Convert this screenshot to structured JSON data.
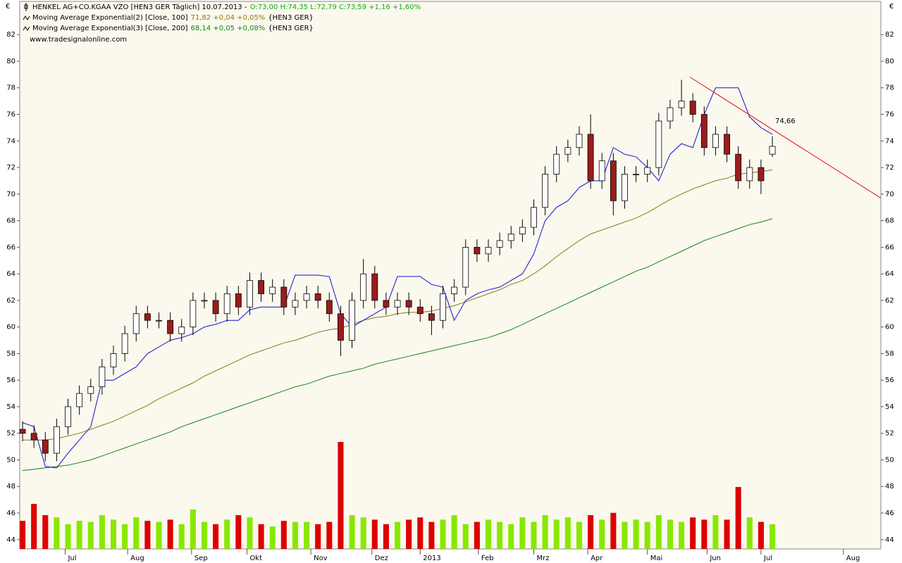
{
  "chart_data": {
    "type": "candlestick",
    "title": "HENKEL AG+CO.KGAA VZO [HEN3 GER  Täglich] 10.07.2013 -",
    "quote": "O:73,00 H:74,35 L:72,79 C:73,59 +1,16 +1,60%",
    "quote_color": "#11aa11",
    "credit": "www.tradesignalonline.com",
    "currency": "€",
    "background": "#fbf8ee",
    "x": [
      1,
      5,
      9,
      13,
      17,
      21,
      25,
      29,
      33,
      37,
      41,
      45,
      49,
      53,
      57,
      61,
      65,
      69,
      73,
      77,
      81,
      85,
      89,
      93,
      97,
      101,
      105,
      109,
      113,
      117,
      121,
      125,
      129,
      133,
      137,
      141,
      145,
      149,
      153,
      157,
      161,
      165,
      169,
      173,
      177,
      181,
      185,
      189,
      193,
      197,
      201,
      205,
      209,
      213,
      217,
      221,
      225,
      229,
      233,
      237,
      241,
      245,
      249,
      253,
      257,
      261,
      265
    ],
    "open": [
      52.3,
      52,
      51.5,
      50.5,
      52.5,
      54,
      55,
      55.5,
      57,
      58,
      59.5,
      61,
      60.5,
      60.5,
      59.5,
      60,
      62,
      62,
      61,
      62.5,
      61.5,
      63.5,
      62.5,
      63,
      61.5,
      62,
      62.5,
      62,
      61,
      59,
      62,
      64,
      62,
      61.5,
      62,
      61.5,
      61,
      60.5,
      62.5,
      63,
      66,
      65.5,
      66,
      66.5,
      67,
      67.5,
      69,
      71.5,
      73,
      73.5,
      74.5,
      71,
      72.5,
      69.5,
      71.5,
      71.5,
      72,
      75.5,
      76.5,
      77,
      76,
      73.5,
      74.5,
      73,
      71,
      72,
      73
    ],
    "high": [
      52.9,
      52.6,
      52.1,
      53.1,
      54.6,
      55.6,
      56.1,
      57.6,
      58.6,
      60.1,
      61.6,
      61.6,
      61.1,
      61.1,
      60.6,
      62.6,
      62.6,
      62.6,
      63.1,
      63.1,
      64.1,
      64.1,
      63.6,
      63.6,
      62.6,
      63.1,
      63.1,
      62.6,
      61.6,
      62.6,
      65.1,
      64.6,
      62.6,
      62.6,
      62.6,
      62.1,
      61.6,
      63.1,
      63.6,
      66.6,
      66.6,
      66.6,
      67.1,
      67.6,
      68.1,
      69.6,
      72.1,
      73.6,
      74.1,
      75.1,
      76,
      73.1,
      73.1,
      72.1,
      72.1,
      72.6,
      76.1,
      77.1,
      78.6,
      77.6,
      76.6,
      75.1,
      75.1,
      73.6,
      72.6,
      72.6,
      74.35
    ],
    "low": [
      51.4,
      50.9,
      49.9,
      49.9,
      51.9,
      53.4,
      54.4,
      54.9,
      56.4,
      57.4,
      58.9,
      59.9,
      59.9,
      58.9,
      58.9,
      59.4,
      61.4,
      60.4,
      60.4,
      60.9,
      60.9,
      61.9,
      61.9,
      60.9,
      60.9,
      61.4,
      61.4,
      60.4,
      57.8,
      58.4,
      61.4,
      61.4,
      60.9,
      60.9,
      60.9,
      60.4,
      59.4,
      59.9,
      61.9,
      62.4,
      64.9,
      64.9,
      65.4,
      65.9,
      66.4,
      66.9,
      68.4,
      70.9,
      72.4,
      72.9,
      70.4,
      70.4,
      68.4,
      68.9,
      70.9,
      70.9,
      71.4,
      74.9,
      75.9,
      75.4,
      72.9,
      72.9,
      72.4,
      70.4,
      70.4,
      70,
      72.79
    ],
    "close": [
      52,
      51.5,
      50.5,
      52.5,
      54,
      55,
      55.5,
      57,
      58,
      59.5,
      61,
      60.5,
      60.5,
      59.5,
      60,
      62,
      62,
      61,
      62.5,
      61.5,
      63.5,
      62.5,
      63,
      61.5,
      62,
      62.5,
      62,
      61,
      59,
      62,
      64,
      62,
      61.5,
      62,
      61.5,
      61,
      60.5,
      62.5,
      63,
      66,
      65.5,
      66,
      66.5,
      67,
      67.5,
      69,
      71.5,
      73,
      73.5,
      74.5,
      71,
      72.5,
      69.5,
      71.5,
      71.5,
      72,
      75.5,
      76.5,
      77,
      76,
      73.5,
      74.5,
      73,
      71,
      72,
      71,
      73.59
    ],
    "up_color": "#ffffff",
    "down_color": "#9a1c1c",
    "volume": {
      "lim": [
        0,
        100
      ],
      "up_color": "#88e800",
      "down_color": "#dd0000",
      "values": [
        25,
        40,
        30,
        28,
        22,
        25,
        24,
        30,
        26,
        22,
        28,
        25,
        24,
        26,
        22,
        35,
        24,
        22,
        26,
        30,
        28,
        22,
        20,
        25,
        24,
        24,
        22,
        24,
        95,
        30,
        28,
        26,
        22,
        24,
        26,
        28,
        24,
        26,
        30,
        22,
        24,
        26,
        24,
        22,
        28,
        24,
        30,
        26,
        28,
        24,
        30,
        26,
        32,
        24,
        26,
        24,
        30,
        26,
        24,
        28,
        26,
        30,
        26,
        55,
        28,
        24,
        22
      ]
    },
    "series": [
      {
        "name": "Moving Average Exponential(2) [Close, 100]",
        "legend_value": "71,82 +0,04 +0,05%",
        "legend_suffix": "{HEN3 GER}",
        "color": "#8a7a10",
        "values": [
          51.5,
          51.5,
          51.5,
          51.6,
          51.8,
          52.0,
          52.3,
          52.6,
          52.9,
          53.3,
          53.7,
          54.1,
          54.6,
          55.0,
          55.4,
          55.8,
          56.3,
          56.7,
          57.1,
          57.5,
          57.9,
          58.2,
          58.5,
          58.8,
          59.0,
          59.3,
          59.6,
          59.8,
          59.9,
          60.2,
          60.5,
          60.7,
          60.8,
          61.0,
          61.1,
          61.1,
          61.2,
          61.4,
          61.6,
          61.9,
          62.2,
          62.5,
          62.8,
          63.2,
          63.5,
          64.0,
          64.6,
          65.3,
          65.9,
          66.5,
          67.0,
          67.3,
          67.6,
          67.9,
          68.2,
          68.6,
          69.1,
          69.6,
          70.0,
          70.4,
          70.7,
          71.0,
          71.2,
          71.5,
          71.6,
          71.7,
          71.82
        ]
      },
      {
        "name": "Moving Average Exponential(3) [Close, 200]",
        "legend_value": "68,14 +0,05 +0,08%",
        "legend_suffix": "{HEN3 GER}",
        "color": "#118811",
        "values": [
          49.2,
          49.3,
          49.4,
          49.5,
          49.6,
          49.8,
          50.0,
          50.3,
          50.6,
          50.9,
          51.2,
          51.5,
          51.8,
          52.1,
          52.5,
          52.8,
          53.1,
          53.4,
          53.7,
          54.0,
          54.3,
          54.6,
          54.9,
          55.2,
          55.5,
          55.7,
          56.0,
          56.3,
          56.5,
          56.7,
          56.9,
          57.2,
          57.4,
          57.6,
          57.8,
          58.0,
          58.2,
          58.4,
          58.6,
          58.8,
          59.0,
          59.2,
          59.5,
          59.8,
          60.2,
          60.6,
          61.0,
          61.4,
          61.8,
          62.2,
          62.6,
          63.0,
          63.4,
          63.8,
          64.2,
          64.5,
          64.9,
          65.3,
          65.7,
          66.1,
          66.5,
          66.8,
          67.1,
          67.4,
          67.7,
          67.9,
          68.14
        ]
      },
      {
        "color": "#1111cc",
        "values": [
          52.8,
          52.5,
          49.5,
          49.4,
          50.5,
          51.5,
          52.5,
          56,
          56,
          56.5,
          57,
          58,
          58.5,
          59,
          59.2,
          59.5,
          60,
          60.2,
          60.5,
          60.5,
          61.3,
          61.5,
          61.5,
          61.5,
          63.9,
          63.9,
          63.9,
          63.8,
          61,
          60,
          60.5,
          61,
          61.5,
          63.8,
          63.8,
          63.8,
          63.2,
          63,
          60.5,
          62,
          62.5,
          62.8,
          63,
          63.5,
          64,
          65.5,
          68,
          69,
          69.5,
          70.5,
          71,
          71,
          73.5,
          73,
          72.8,
          72,
          71,
          73,
          73.8,
          73.5,
          76,
          78,
          78,
          78,
          75.8,
          75,
          74.5
        ]
      }
    ],
    "trendline": {
      "x": [
        236,
        303.2
      ],
      "values": [
        78.8,
        69.7
      ],
      "label": "74,66",
      "color": "#dd1111"
    },
    "xlim": [
      0,
      303.2
    ],
    "xticks": [
      {
        "value": 16,
        "label": "Jul"
      },
      {
        "value": 38,
        "label": "Aug"
      },
      {
        "value": 60.5,
        "label": "Sep"
      },
      {
        "value": 80,
        "label": "Okt"
      },
      {
        "value": 102.5,
        "label": "Nov"
      },
      {
        "value": 124,
        "label": "Dez"
      },
      {
        "value": 141,
        "label": "2013"
      },
      {
        "value": 161.5,
        "label": "Feb"
      },
      {
        "value": 181,
        "label": "Mrz"
      },
      {
        "value": 200,
        "label": "Apr"
      },
      {
        "value": 221,
        "label": "Mai"
      },
      {
        "value": 242,
        "label": "Jun"
      },
      {
        "value": 261,
        "label": "Jul"
      },
      {
        "value": 290,
        "label": "Aug"
      }
    ],
    "ylim": [
      43.3,
      84.5
    ],
    "yticks": [
      44,
      46,
      48,
      50,
      52,
      54,
      56,
      58,
      60,
      62,
      64,
      66,
      68,
      70,
      72,
      74,
      76,
      78,
      80,
      82
    ]
  }
}
